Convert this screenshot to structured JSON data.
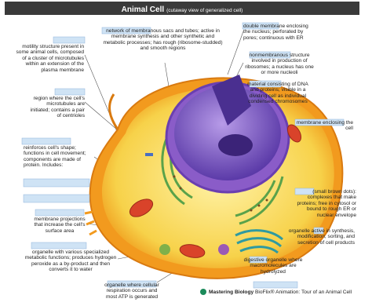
{
  "header": {
    "title": "Animal Cell",
    "subtitle": "(cutaway view of generalized cell)"
  },
  "labels": [
    "motility structure present in some animal cells, composed of a cluster of microtubules within an extension of the plasma membrane",
    "region where the cell's microtubules are initiated; contains a pair of centrioles",
    "reinforces cell's shape; functions in cell movement; components are made of protein. Includes:",
    "membrane projections that increase the cell's surface area",
    "organelle with various specialized metabolic functions; produces hydrogen peroxide as a by-product and then converts it to water",
    "organelle where cellular respiration occurs and most ATP is generated",
    "network of membranous sacs and tubes; active in membrane synthesis and other synthetic and metabolic processes; has rough (ribosome-studded) and smooth regions",
    "double membrane enclosing the nucleus; perforated by pores; continuous with ER",
    "nonmembranous structure involved in production of ribosomes; a nucleus has one or more nucleoli",
    "material consisting of DNA and proteins; visible in a dividing cell as individual condensed chromosomes",
    "membrane enclosing the cell",
    "(small brown dots): complexes that make proteins; free in cytosol or bound to rough ER or nuclear envelope",
    "organelle active in synthesis, modification, sorting, and secretion of cell products",
    "digestive organelle where macromolecules are hydrolyzed"
  ],
  "footer": {
    "brand": "Mastering Biology",
    "caption": "BioFlix® Animation: Tour of an Animal Cell"
  }
}
